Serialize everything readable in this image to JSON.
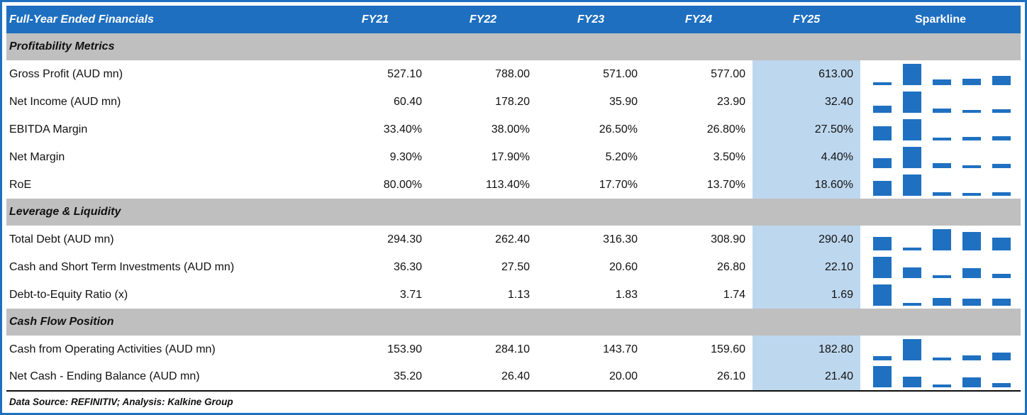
{
  "header": {
    "title": "Full-Year Ended Financials",
    "columns": [
      "FY21",
      "FY22",
      "FY23",
      "FY24",
      "FY25"
    ],
    "sparkline": "Sparkline"
  },
  "colors": {
    "header_bg": "#1E6FC0",
    "header_text": "#FFFFFF",
    "section_bg": "#BFBFBF",
    "fy25_highlight": "#BDD7EE",
    "sparkline_bar": "#1F70C1",
    "frame_border": "#1E6FC0",
    "bottom_rule": "#0B0B0B"
  },
  "sections": [
    {
      "title": "Profitability Metrics",
      "rows": [
        {
          "label": "Gross Profit (AUD mn)",
          "values": [
            "527.10",
            "788.00",
            "571.00",
            "577.00",
            "613.00"
          ]
        },
        {
          "label": "Net Income (AUD mn)",
          "values": [
            "60.40",
            "178.20",
            "35.90",
            "23.90",
            "32.40"
          ]
        },
        {
          "label": "EBITDA Margin",
          "values": [
            "33.40%",
            "38.00%",
            "26.50%",
            "26.80%",
            "27.50%"
          ]
        },
        {
          "label": "Net Margin",
          "values": [
            "9.30%",
            "17.90%",
            "5.20%",
            "3.50%",
            "4.40%"
          ]
        },
        {
          "label": "RoE",
          "values": [
            "80.00%",
            "113.40%",
            "17.70%",
            "13.70%",
            "18.60%"
          ]
        }
      ]
    },
    {
      "title": "Leverage & Liquidity",
      "rows": [
        {
          "label": "Total Debt (AUD mn)",
          "values": [
            "294.30",
            "262.40",
            "316.30",
            "308.90",
            "290.40"
          ]
        },
        {
          "label": "Cash and Short Term Investments (AUD mn)",
          "values": [
            "36.30",
            "27.50",
            "20.60",
            "26.80",
            "22.10"
          ]
        },
        {
          "label": "Debt-to-Equity Ratio (x)",
          "values": [
            "3.71",
            "1.13",
            "1.83",
            "1.74",
            "1.69"
          ]
        }
      ]
    },
    {
      "title": "Cash Flow Position",
      "rows": [
        {
          "label": "Cash from Operating Activities (AUD mn)",
          "values": [
            "153.90",
            "284.10",
            "143.70",
            "159.60",
            "182.80"
          ]
        },
        {
          "label": "Net Cash - Ending Balance (AUD mn)",
          "values": [
            "35.20",
            "26.40",
            "20.00",
            "26.10",
            "21.40"
          ]
        }
      ]
    }
  ],
  "footer": {
    "note": "Data Source: REFINITIV; Analysis: Kalkine Group"
  },
  "chart_data": {
    "type": "table",
    "title": "Full-Year Ended Financials",
    "columns": [
      "FY21",
      "FY22",
      "FY23",
      "FY24",
      "FY25"
    ],
    "sections": [
      {
        "title": "Profitability Metrics",
        "rows": [
          {
            "label": "Gross Profit (AUD mn)",
            "values": [
              527.1,
              788.0,
              571.0,
              577.0,
              613.0
            ]
          },
          {
            "label": "Net Income (AUD mn)",
            "values": [
              60.4,
              178.2,
              35.9,
              23.9,
              32.4
            ]
          },
          {
            "label": "EBITDA Margin",
            "unit": "%",
            "values": [
              33.4,
              38.0,
              26.5,
              26.8,
              27.5
            ]
          },
          {
            "label": "Net Margin",
            "unit": "%",
            "values": [
              9.3,
              17.9,
              5.2,
              3.5,
              4.4
            ]
          },
          {
            "label": "RoE",
            "unit": "%",
            "values": [
              80.0,
              113.4,
              17.7,
              13.7,
              18.6
            ]
          }
        ]
      },
      {
        "title": "Leverage & Liquidity",
        "rows": [
          {
            "label": "Total Debt (AUD mn)",
            "values": [
              294.3,
              262.4,
              316.3,
              308.9,
              290.4
            ]
          },
          {
            "label": "Cash and Short Term Investments (AUD mn)",
            "values": [
              36.3,
              27.5,
              20.6,
              26.8,
              22.1
            ]
          },
          {
            "label": "Debt-to-Equity Ratio (x)",
            "values": [
              3.71,
              1.13,
              1.83,
              1.74,
              1.69
            ]
          }
        ]
      },
      {
        "title": "Cash Flow Position",
        "rows": [
          {
            "label": "Cash from Operating Activities (AUD mn)",
            "values": [
              153.9,
              284.1,
              143.7,
              159.6,
              182.8
            ]
          },
          {
            "label": "Net Cash - Ending Balance (AUD mn)",
            "values": [
              35.2,
              26.4,
              20.0,
              26.1,
              21.4
            ]
          }
        ]
      }
    ],
    "sparkline": {
      "type": "bar",
      "per_row": true,
      "scaling": "min-max",
      "color": "#1F70C1"
    }
  }
}
